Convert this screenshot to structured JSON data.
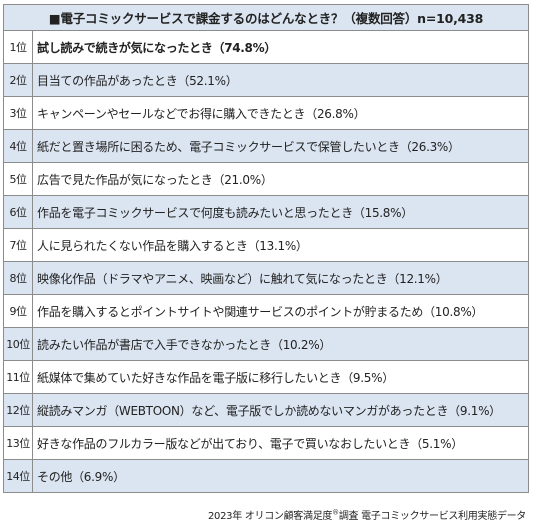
{
  "title": "■電子コミックサービスで課金するのはどんなとき？（複数回答）n=10,438",
  "rows": [
    {
      "rank": "1位",
      "label": "試し読みで続きが気になったとき（74.8%）"
    },
    {
      "rank": "2位",
      "label": "目当ての作品があったとき（52.1%）"
    },
    {
      "rank": "3位",
      "label": "キャンペーンやセールなどでお得に購入できたとき（26.8%）"
    },
    {
      "rank": "4位",
      "label": "紙だと置き場所に困るため、電子コミックサービスで保管したいとき（26.3%）"
    },
    {
      "rank": "5位",
      "label": "広告で見た作品が気になったとき（21.0%）"
    },
    {
      "rank": "6位",
      "label": "作品を電子コミックサービスで何度も読みたいと思ったとき（15.8%）"
    },
    {
      "rank": "7位",
      "label": "人に見られたくない作品を購入するとき（13.1%）"
    },
    {
      "rank": "8位",
      "label": "映像化作品（ドラマやアニメ、映画など）に触れて気になったとき（12.1%）"
    },
    {
      "rank": "9位",
      "label": "作品を購入するとポイントサイトや関連サービスのポイントが貯まるため（10.8%）"
    },
    {
      "rank": "10位",
      "label": "読みたい作品が書店で入手できなかったとき（10.2%）"
    },
    {
      "rank": "11位",
      "label": "紙媒体で集めていた好きな作品を電子版に移行したいとき（9.5%）"
    },
    {
      "rank": "12位",
      "label": "縦読みマンガ（WEBTOON）など、電子版でしか読めないマンガがあったとき（9.1%）"
    },
    {
      "rank": "13位",
      "label": "好きな作品のフルカラー版などが出ており、電子で買いなおしたいとき（5.1%）"
    },
    {
      "rank": "14位",
      "label": "その他（6.9%）"
    }
  ],
  "footer": {
    "pre": "2023年 オリコン顧客満足度",
    "mark": "®",
    "post": "調査 電子コミックサービス利用実態データ"
  },
  "colors": {
    "alt_row": "#dbe5f1",
    "border": "#8c8c8c"
  }
}
